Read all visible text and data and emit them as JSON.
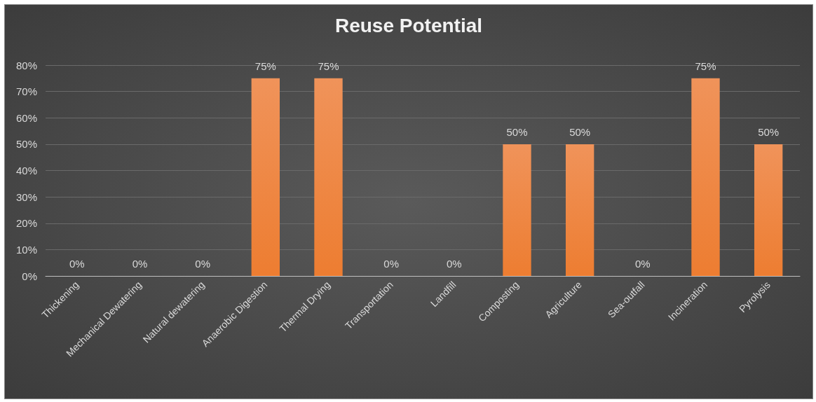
{
  "chart_data": {
    "type": "bar",
    "title": "Reuse Potential",
    "categories": [
      "Thickening",
      "Mechanical Dewatering",
      "Natural dewatering",
      "Anaerobic Digestion",
      "Thermal Drying",
      "Transportation",
      "Landfill",
      "Composting",
      "Agriculture",
      "Sea-outfall",
      "Incineration",
      "Pyrolysis"
    ],
    "values": [
      0,
      0,
      0,
      75,
      75,
      0,
      0,
      50,
      50,
      0,
      75,
      50
    ],
    "value_labels": [
      "0%",
      "0%",
      "0%",
      "75%",
      "75%",
      "0%",
      "0%",
      "50%",
      "50%",
      "0%",
      "75%",
      "50%"
    ],
    "color": "#ed7d31",
    "ylim": [
      0,
      80
    ],
    "yticks": [
      {
        "value": 0,
        "label": "0%"
      },
      {
        "value": 10,
        "label": "10%"
      },
      {
        "value": 20,
        "label": "20%"
      },
      {
        "value": 30,
        "label": "30%"
      },
      {
        "value": 40,
        "label": "40%"
      },
      {
        "value": 50,
        "label": "50%"
      },
      {
        "value": 60,
        "label": "60%"
      },
      {
        "value": 70,
        "label": "70%"
      },
      {
        "value": 80,
        "label": "80%"
      }
    ],
    "grid": "y"
  }
}
